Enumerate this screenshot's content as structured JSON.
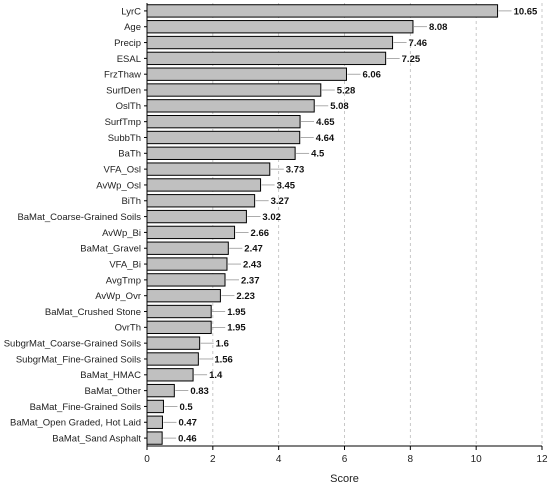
{
  "chart_data": {
    "type": "bar",
    "orientation": "horizontal",
    "xlabel": "Score",
    "xlim": [
      0,
      12
    ],
    "xticks": [
      0,
      2,
      4,
      6,
      8,
      10,
      12
    ],
    "grid": "vertical dashed",
    "colors": {
      "bar_fill": "#c0c0c0",
      "bar_stroke": "#000000",
      "grid": "#bbbbbb",
      "text": "#111111"
    },
    "categories": [
      "LyrC",
      "Age",
      "Precip",
      "ESAL",
      "FrzThaw",
      "SurfDen",
      "OslTh",
      "SurfTmp",
      "SubbTh",
      "BaTh",
      "VFA_Osl",
      "AvWp_Osl",
      "BiTh",
      "BaMat_Coarse-Grained Soils",
      "AvWp_Bi",
      "BaMat_Gravel",
      "VFA_Bi",
      "AvgTmp",
      "AvWp_Ovr",
      "BaMat_Crushed Stone",
      "OvrTh",
      "SubgrMat_Coarse-Grained Soils",
      "SubgrMat_Fine-Grained Soils",
      "BaMat_HMAC",
      "BaMat_Other",
      "BaMat_Fine-Grained Soils",
      "BaMat_Open Graded, Hot Laid",
      "BaMat_Sand Asphalt"
    ],
    "values": [
      10.65,
      8.08,
      7.46,
      7.25,
      6.06,
      5.28,
      5.08,
      4.65,
      4.64,
      4.5,
      3.73,
      3.45,
      3.27,
      3.02,
      2.66,
      2.47,
      2.43,
      2.37,
      2.23,
      1.95,
      1.95,
      1.6,
      1.56,
      1.4,
      0.83,
      0.5,
      0.47,
      0.46
    ],
    "value_labels": [
      "10.65",
      "8.08",
      "7.46",
      "7.25",
      "6.06",
      "5.28",
      "5.08",
      "4.65",
      "4.64",
      "4.5",
      "3.73",
      "3.45",
      "3.27",
      "3.02",
      "2.66",
      "2.47",
      "2.43",
      "2.37",
      "2.23",
      "1.95",
      "1.95",
      "1.6",
      "1.56",
      "1.4",
      "0.83",
      "0.5",
      "0.47",
      "0.46"
    ]
  }
}
